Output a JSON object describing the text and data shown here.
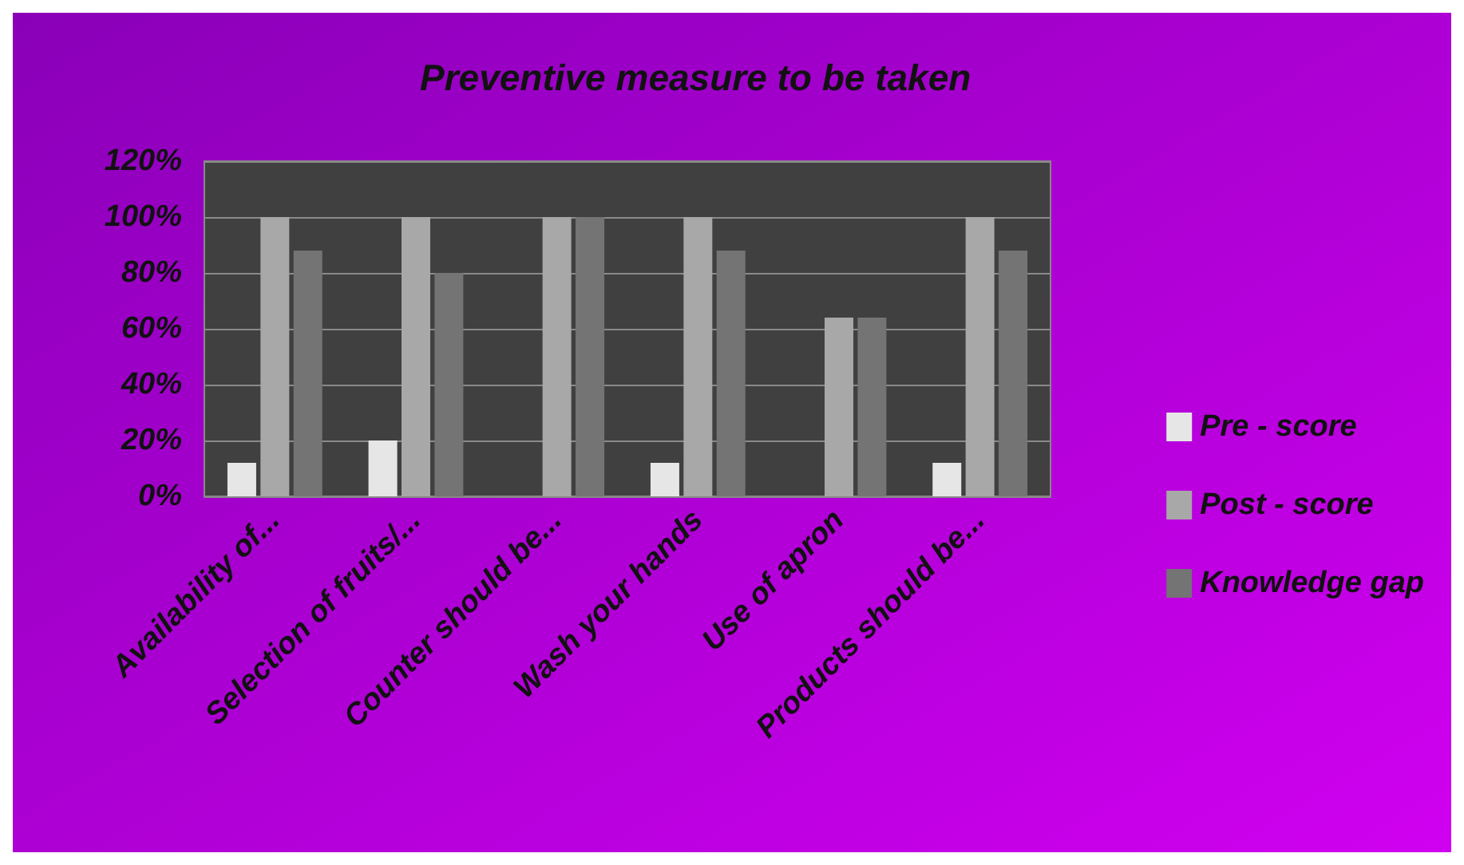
{
  "chart_data": {
    "type": "bar",
    "title": "Preventive measure to be taken",
    "categories": [
      "Availability of...",
      "Selection of fruits/...",
      "Counter should be...",
      "Wash your hands",
      "Use of apron",
      "Products should be..."
    ],
    "series": [
      {
        "name": "Pre - score",
        "color": "#e6e6e6",
        "values": [
          12,
          20,
          0,
          12,
          0,
          12
        ]
      },
      {
        "name": "Post - score",
        "color": "#a8a8a8",
        "values": [
          100,
          100,
          100,
          100,
          64,
          100
        ]
      },
      {
        "name": "Knowledge gap",
        "color": "#747474",
        "values": [
          88,
          80,
          100,
          88,
          64,
          88
        ]
      }
    ],
    "ylim": [
      0,
      120
    ],
    "yticks": [
      {
        "value": 0,
        "label": "0%"
      },
      {
        "value": 20,
        "label": "20%"
      },
      {
        "value": 40,
        "label": "40%"
      },
      {
        "value": 60,
        "label": "60%"
      },
      {
        "value": 80,
        "label": "80%"
      },
      {
        "value": 100,
        "label": "100%"
      },
      {
        "value": 120,
        "label": "120%"
      }
    ],
    "grid": "y",
    "legend": "right"
  }
}
